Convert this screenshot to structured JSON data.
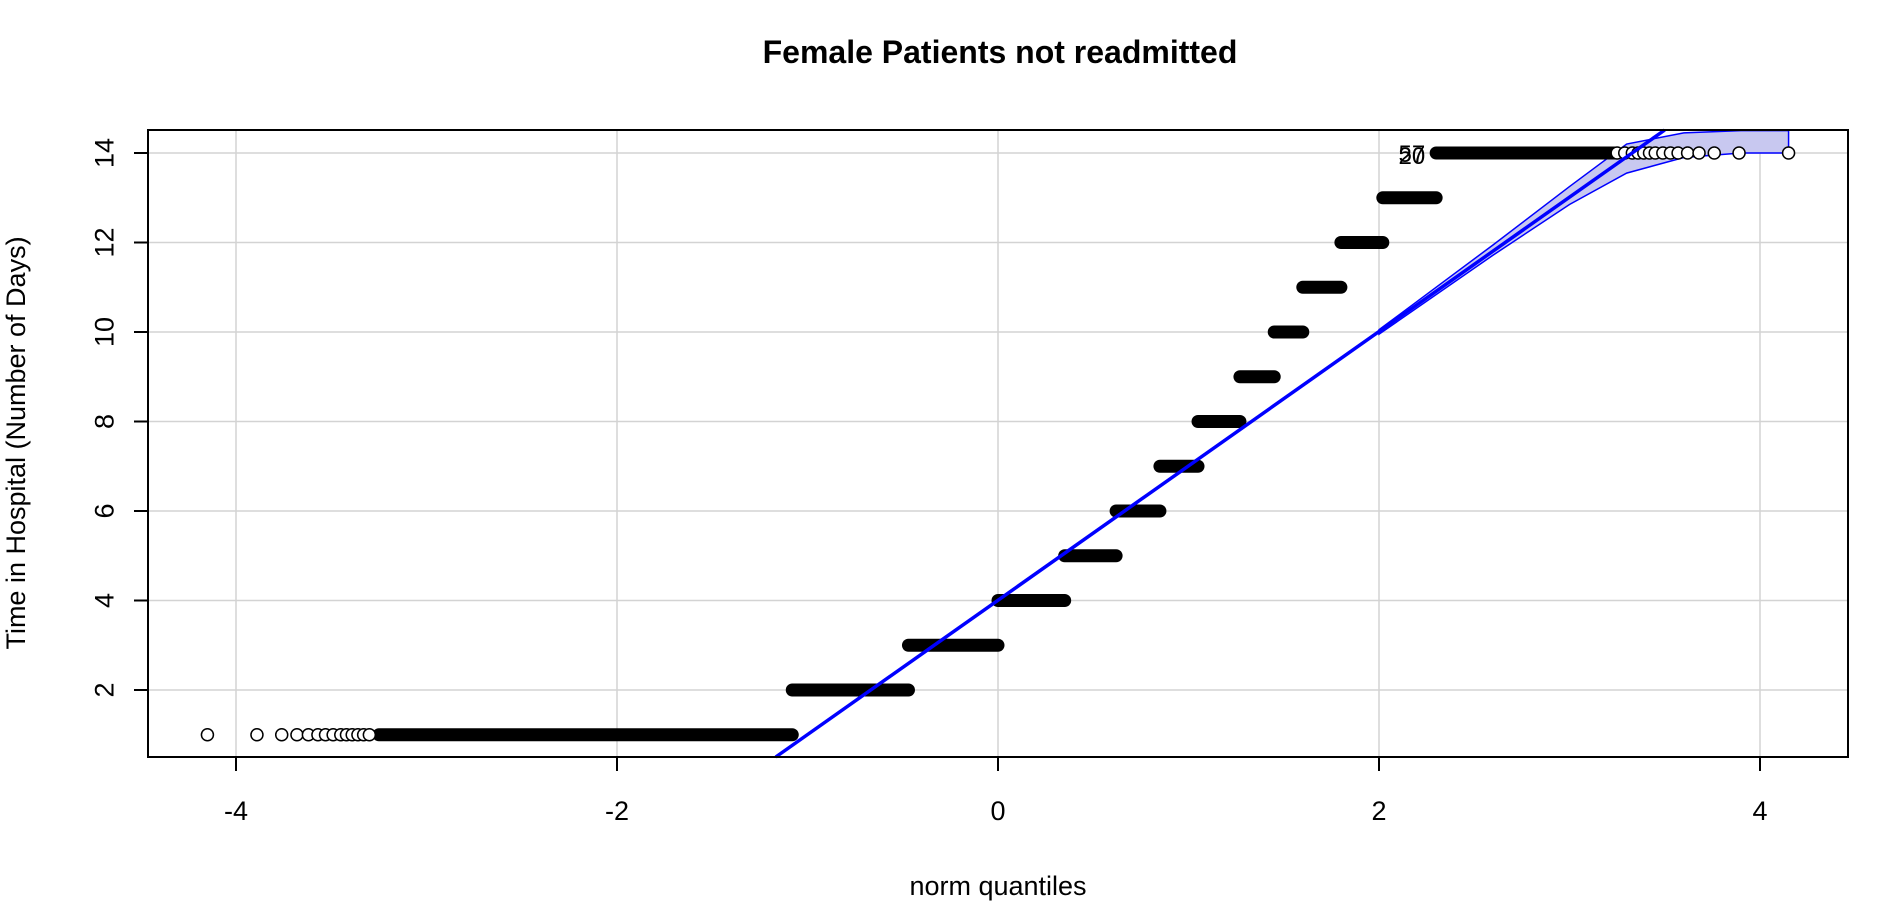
{
  "chart_data": {
    "type": "scatter",
    "title": "Female Patients not readmitted",
    "xlabel": "norm quantiles",
    "ylabel": "Time in Hospital (Number of Days)",
    "xlim": [
      -4.5,
      4.45
    ],
    "ylim": [
      0.5,
      14.5
    ],
    "x_ticks": [
      -4,
      -2,
      0,
      2,
      4
    ],
    "y_ticks": [
      2,
      4,
      6,
      8,
      10,
      12,
      14
    ],
    "grid": true,
    "colors": {
      "points": "#000000",
      "reference_line": "#0000ff",
      "envelope_fill": "#c8c8f0",
      "grid": "#d3d3d3"
    },
    "series": [
      {
        "type": "scatter",
        "steps": [
          {
            "y": 1,
            "x_start": -3.25,
            "x_end": -1.08
          },
          {
            "y": 2,
            "x_start": -1.08,
            "x_end": -0.47
          },
          {
            "y": 3,
            "x_start": -0.47,
            "x_end": 0.0
          },
          {
            "y": 4,
            "x_start": 0.0,
            "x_end": 0.35
          },
          {
            "y": 5,
            "x_start": 0.35,
            "x_end": 0.62
          },
          {
            "y": 6,
            "x_start": 0.62,
            "x_end": 0.85
          },
          {
            "y": 7,
            "x_start": 0.85,
            "x_end": 1.05
          },
          {
            "y": 8,
            "x_start": 1.05,
            "x_end": 1.27
          },
          {
            "y": 9,
            "x_start": 1.27,
            "x_end": 1.45
          },
          {
            "y": 10,
            "x_start": 1.45,
            "x_end": 1.6
          },
          {
            "y": 11,
            "x_start": 1.6,
            "x_end": 1.8
          },
          {
            "y": 12,
            "x_start": 1.8,
            "x_end": 2.02
          },
          {
            "y": 13,
            "x_start": 2.02,
            "x_end": 2.3
          },
          {
            "y": 14,
            "x_start": 2.3,
            "x_end": 3.25
          }
        ],
        "low_outliers": [
          {
            "x": -4.15,
            "y": 1
          },
          {
            "x": -3.89,
            "y": 1
          },
          {
            "x": -3.76,
            "y": 1
          },
          {
            "x": -3.68,
            "y": 1
          },
          {
            "x": -3.62,
            "y": 1
          },
          {
            "x": -3.57,
            "y": 1
          },
          {
            "x": -3.53,
            "y": 1
          },
          {
            "x": -3.49,
            "y": 1
          },
          {
            "x": -3.45,
            "y": 1
          },
          {
            "x": -3.42,
            "y": 1
          },
          {
            "x": -3.39,
            "y": 1
          },
          {
            "x": -3.36,
            "y": 1
          },
          {
            "x": -3.33,
            "y": 1
          },
          {
            "x": -3.3,
            "y": 1
          }
        ],
        "high_outliers": [
          {
            "x": 3.25,
            "y": 14
          },
          {
            "x": 3.29,
            "y": 14
          },
          {
            "x": 3.33,
            "y": 14
          },
          {
            "x": 3.36,
            "y": 14
          },
          {
            "x": 3.39,
            "y": 14
          },
          {
            "x": 3.42,
            "y": 14
          },
          {
            "x": 3.45,
            "y": 14
          },
          {
            "x": 3.49,
            "y": 14
          },
          {
            "x": 3.53,
            "y": 14
          },
          {
            "x": 3.57,
            "y": 14
          },
          {
            "x": 3.62,
            "y": 14
          },
          {
            "x": 3.68,
            "y": 14
          },
          {
            "x": 3.76,
            "y": 14
          },
          {
            "x": 3.89,
            "y": 14
          },
          {
            "x": 4.15,
            "y": 14
          }
        ]
      }
    ],
    "reference_line": {
      "intercept": 4.0,
      "slope": 3.0
    },
    "envelope": {
      "x": [
        2.0,
        2.6,
        3.0,
        3.3,
        3.6,
        3.9,
        4.15
      ],
      "upper": [
        10.05,
        11.95,
        13.25,
        14.2,
        14.45,
        14.5,
        14.5
      ],
      "lower": [
        9.95,
        11.72,
        12.85,
        13.55,
        13.9,
        14.0,
        14.0
      ]
    },
    "point_labels": [
      {
        "text": "57",
        "x": 2.05,
        "y": 14
      },
      {
        "text": "20",
        "x": 2.05,
        "y": 13.95
      }
    ]
  }
}
